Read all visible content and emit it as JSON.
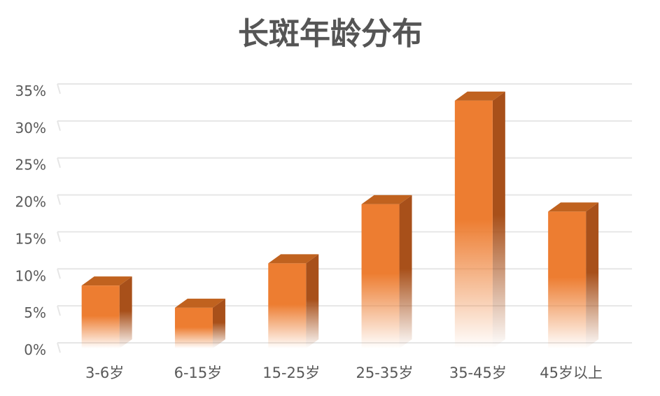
{
  "chart_data": {
    "type": "bar",
    "title": "长斑年龄分布",
    "xlabel": "",
    "ylabel": "",
    "categories": [
      "3-6岁",
      "6-15岁",
      "15-25岁",
      "25-35岁",
      "35-45岁",
      "45岁以上"
    ],
    "values": [
      8.5,
      5.5,
      11.5,
      19.5,
      33.5,
      18.5
    ],
    "ylim": [
      0,
      35
    ],
    "yticks": [
      0,
      5,
      10,
      15,
      20,
      25,
      30,
      35
    ],
    "ytick_labels": [
      "0%",
      "5%",
      "10%",
      "15%",
      "20%",
      "25%",
      "30%",
      "35%"
    ],
    "grid": true,
    "legend": "none",
    "style": "3d-column",
    "colors": {
      "bar_front": "#ED7D31",
      "bar_side": "#A8501A",
      "bar_top": "#C0621F",
      "grid": "#E6E6E6",
      "text": "#595959",
      "title": "#555555"
    }
  }
}
